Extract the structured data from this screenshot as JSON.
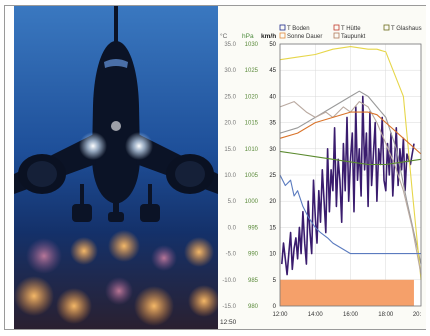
{
  "photo": {
    "subject": "airplane landing at dusk"
  },
  "chart_data": {
    "type": "line",
    "x_ticks": [
      "12:00",
      "14:00",
      "16:00",
      "18:00",
      "20:"
    ],
    "start_time_label": "12:50",
    "axes": {
      "celsius": {
        "unit": "°C",
        "ticks": [
          "35.0",
          "30.0",
          "25.0",
          "20.0",
          "15.0",
          "10.0",
          "5.0",
          "0.0",
          "-5.0",
          "-10.0",
          "-15.0"
        ]
      },
      "hpa": {
        "unit": "hPa",
        "ticks": [
          "1030",
          "1025",
          "1020",
          "1015",
          "1010",
          "1005",
          "1000",
          "995",
          "990",
          "985",
          "980"
        ]
      },
      "kmh": {
        "unit": "km/h",
        "ticks": [
          "50",
          "45",
          "40",
          "35",
          "30",
          "25",
          "20",
          "15",
          "10",
          "5",
          "0"
        ]
      }
    },
    "legend": [
      {
        "name": "T Boden",
        "color": "#1f2a8a"
      },
      {
        "name": "T Hütte",
        "color": "#c0392b"
      },
      {
        "name": "T Glashaus",
        "color": "#6b6b1a"
      },
      {
        "name": "Sonne Dauer",
        "color": "#e08a3c"
      },
      {
        "name": "Taupunkt",
        "color": "#b07a5a"
      }
    ],
    "colors": {
      "wind": "#3a1c6e",
      "pressure": "#9a9a9a",
      "humidity": "#e6d64a",
      "dewpoint": "#b9a9a0",
      "green_line": "#5a8a2e",
      "orange_curve": "#d9732a",
      "blue_line": "#5b7bbf",
      "sun_bar": "#f5a06a"
    },
    "series": [
      {
        "color_key": "wind",
        "x": [
          12.1,
          12.2,
          12.4,
          12.5,
          12.6,
          12.7,
          12.8,
          12.9,
          13.0,
          13.1,
          13.2,
          13.3,
          13.4,
          13.5,
          13.6,
          13.7,
          13.8,
          13.9,
          14.0,
          14.1,
          14.2,
          14.3,
          14.4,
          14.5,
          14.6,
          14.7,
          14.8,
          14.9,
          15.0,
          15.1,
          15.2,
          15.3,
          15.4,
          15.5,
          15.6,
          15.7,
          15.8,
          15.9,
          16.0,
          16.1,
          16.2,
          16.3,
          16.4,
          16.5,
          16.6,
          16.7,
          16.8,
          16.9,
          17.0,
          17.1,
          17.2,
          17.3,
          17.4,
          17.5,
          17.6,
          17.7,
          17.8,
          17.9,
          18.0,
          18.1,
          18.2,
          18.3,
          18.4,
          18.5,
          18.6,
          18.7,
          18.8,
          18.9,
          19.0,
          19.1,
          19.2,
          19.4,
          19.6
        ],
        "y": [
          8,
          12,
          6,
          10,
          14,
          7,
          11,
          13,
          9,
          15,
          10,
          18,
          12,
          8,
          20,
          14,
          10,
          24,
          17,
          12,
          22,
          16,
          26,
          20,
          14,
          30,
          18,
          26,
          22,
          34,
          19,
          28,
          24,
          16,
          31,
          22,
          36,
          20,
          28,
          33,
          18,
          38,
          24,
          30,
          21,
          40,
          26,
          33,
          19,
          37,
          23,
          29,
          35,
          20,
          30,
          27,
          36,
          24,
          22,
          31,
          25,
          33,
          21,
          28,
          34,
          23,
          30,
          26,
          32,
          22,
          29,
          27,
          31
        ]
      },
      {
        "color_key": "pressure",
        "x": [
          12.0,
          13.0,
          14.0,
          15.0,
          16.0,
          16.5,
          17.0,
          17.5,
          18.0,
          18.6,
          19.2,
          20.0
        ],
        "y": [
          33,
          34,
          36,
          38,
          40,
          41,
          40,
          38,
          36,
          30,
          20,
          8
        ]
      },
      {
        "color_key": "humidity",
        "x": [
          12.0,
          13.0,
          14.0,
          15.0,
          16.0,
          17.0,
          17.5,
          18.0,
          19.0,
          19.5,
          20.0
        ],
        "y": [
          47,
          47.5,
          48,
          49,
          49.5,
          49,
          49,
          48.5,
          40,
          22,
          5
        ]
      },
      {
        "color_key": "dewpoint",
        "x": [
          12.0,
          12.8,
          13.5,
          14.0,
          14.6,
          15.0,
          15.6,
          16.0,
          16.5,
          17.0,
          17.5,
          18.0,
          18.5,
          19.0,
          19.5,
          20.0
        ],
        "y": [
          38,
          39,
          37,
          36,
          37,
          36,
          38,
          37,
          39,
          38,
          35,
          31,
          27,
          22,
          15,
          6
        ]
      },
      {
        "color_key": "orange_curve",
        "x": [
          12.0,
          13.0,
          14.0,
          15.0,
          16.0,
          17.0,
          17.5,
          18.0,
          19.0,
          20.0
        ],
        "y": [
          32,
          33,
          35,
          36,
          37,
          37,
          36.5,
          35,
          32,
          29
        ]
      },
      {
        "color_key": "green_line",
        "x": [
          12.0,
          13.0,
          14.0,
          15.0,
          16.0,
          17.0,
          18.0,
          19.0,
          20.0
        ],
        "y": [
          29.5,
          29,
          28.5,
          28,
          27.5,
          27,
          27,
          27.5,
          28
        ]
      },
      {
        "color_key": "blue_line",
        "x": [
          12.0,
          12.3,
          12.6,
          12.8,
          13.0,
          13.3,
          13.6,
          14.0,
          14.3,
          14.7,
          15.0,
          15.5,
          16.0,
          16.5,
          17.0,
          17.5,
          18.0,
          18.5,
          19.0,
          19.5,
          20.0
        ],
        "y": [
          25,
          23,
          24,
          21,
          22,
          19,
          17,
          15,
          14,
          13,
          12,
          11,
          10,
          10,
          10,
          10,
          10,
          10,
          10,
          10,
          10
        ]
      }
    ],
    "bars": [
      {
        "color_key": "sun_bar",
        "x_start": 12.0,
        "x_end": 19.6,
        "y_top": 5
      }
    ],
    "xlim": [
      12,
      20
    ],
    "ylim": [
      0,
      50
    ]
  }
}
